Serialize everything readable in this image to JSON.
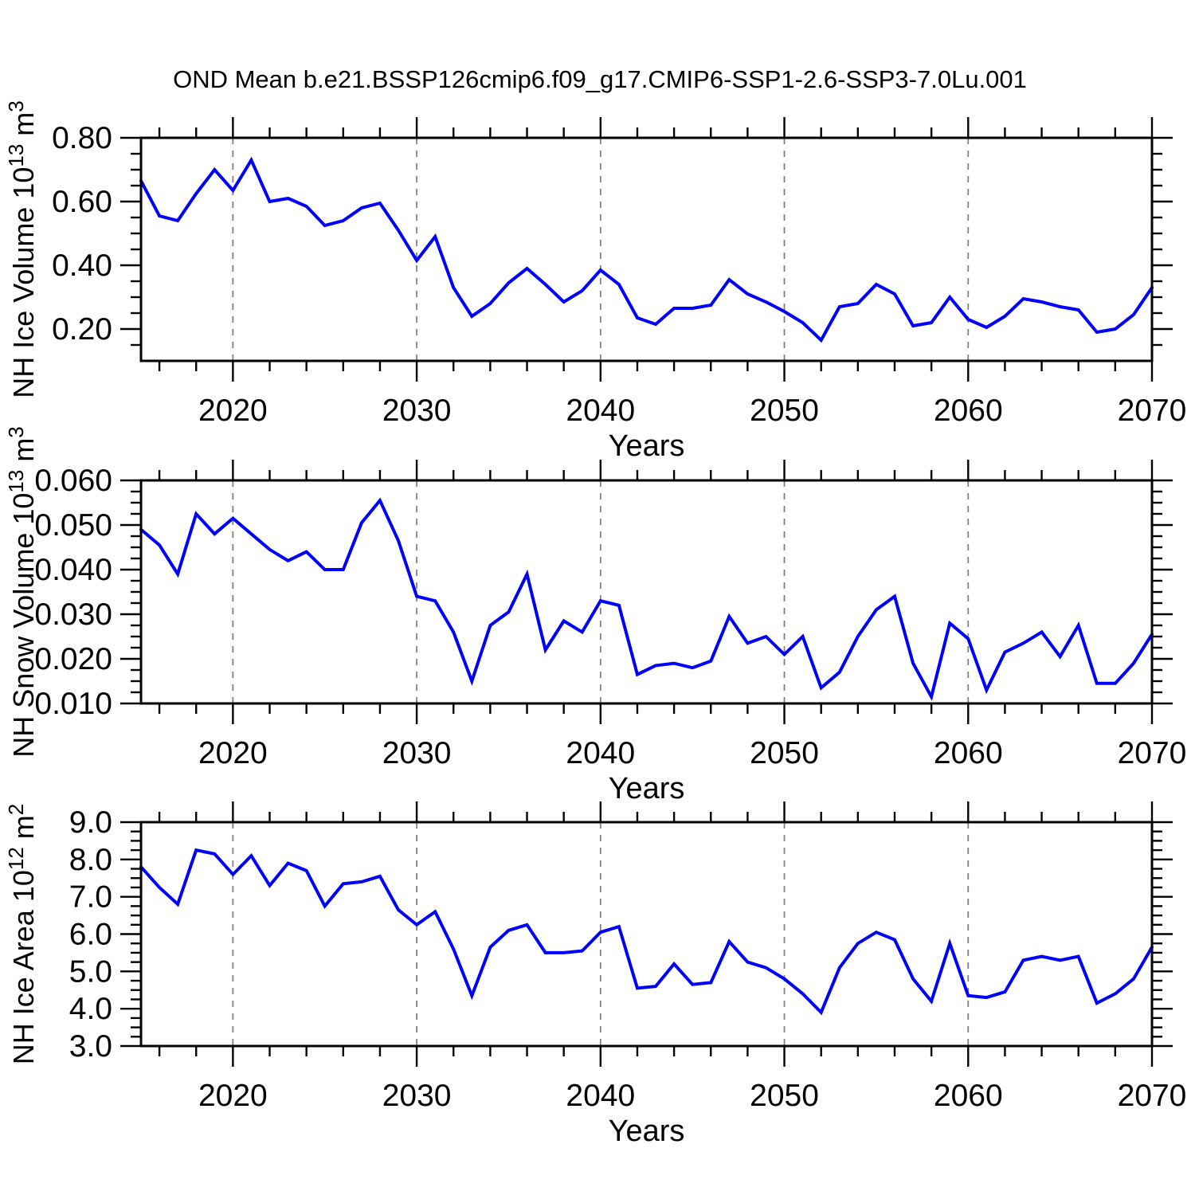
{
  "title": "OND Mean b.e21.BSSP126cmip6.f09_g17.CMIP6-SSP1-2.6-SSP3-7.0Lu.001",
  "colors": {
    "line": "#0000ff",
    "frame": "#000000",
    "gridline": "#828282",
    "text": "#000000",
    "background": "#ffffff"
  },
  "chart_data": [
    {
      "type": "line",
      "panel_id": "nh-ice-volume",
      "series_name": "NH Ice Volume",
      "xlabel": "Years",
      "ylabel_text": "NH Ice Volume 10^13 m^3",
      "ylabel_parts": [
        {
          "t": "NH Ice Volume 10",
          "sup": false
        },
        {
          "t": "13",
          "sup": true
        },
        {
          "t": " m",
          "sup": false
        },
        {
          "t": "3",
          "sup": true
        }
      ],
      "x_range": [
        2015,
        2070
      ],
      "y_range": [
        0.1,
        0.8
      ],
      "x_major_ticks": [
        2020,
        2030,
        2040,
        2050,
        2060,
        2070
      ],
      "x_major_labels": [
        "2020",
        "2030",
        "2040",
        "2050",
        "2060",
        "2070"
      ],
      "x_minor_step": 2,
      "grid_years": [
        2020,
        2030,
        2040,
        2050,
        2060
      ],
      "y_major_ticks": [
        0.2,
        0.4,
        0.6,
        0.8
      ],
      "y_major_labels": [
        "0.20",
        "0.40",
        "0.60",
        "0.80"
      ],
      "y_minor_step": 0.05,
      "grid": "vertical-dashed-only",
      "legend": "none",
      "x": [
        2015,
        2016,
        2017,
        2018,
        2019,
        2020,
        2021,
        2022,
        2023,
        2024,
        2025,
        2026,
        2027,
        2028,
        2029,
        2030,
        2031,
        2032,
        2033,
        2034,
        2035,
        2036,
        2037,
        2038,
        2039,
        2040,
        2041,
        2042,
        2043,
        2044,
        2045,
        2046,
        2047,
        2048,
        2049,
        2050,
        2051,
        2052,
        2053,
        2054,
        2055,
        2056,
        2057,
        2058,
        2059,
        2060,
        2061,
        2062,
        2063,
        2064,
        2065,
        2066,
        2067,
        2068,
        2069,
        2070
      ],
      "values": [
        0.665,
        0.555,
        0.54,
        0.625,
        0.7,
        0.635,
        0.73,
        0.6,
        0.61,
        0.585,
        0.525,
        0.54,
        0.58,
        0.595,
        0.51,
        0.415,
        0.49,
        0.33,
        0.24,
        0.28,
        0.345,
        0.39,
        0.34,
        0.285,
        0.32,
        0.385,
        0.34,
        0.235,
        0.215,
        0.265,
        0.265,
        0.275,
        0.355,
        0.31,
        0.285,
        0.255,
        0.22,
        0.165,
        0.27,
        0.28,
        0.34,
        0.31,
        0.21,
        0.22,
        0.3,
        0.23,
        0.205,
        0.24,
        0.295,
        0.285,
        0.27,
        0.26,
        0.19,
        0.2,
        0.245,
        0.33
      ]
    },
    {
      "type": "line",
      "panel_id": "nh-snow-volume",
      "series_name": "NH Snow Volume",
      "xlabel": "Years",
      "ylabel_text": "NH Snow Volume 10^13 m^3",
      "ylabel_parts": [
        {
          "t": "NH Snow Volume 10",
          "sup": false
        },
        {
          "t": "13",
          "sup": true
        },
        {
          "t": " m",
          "sup": false
        },
        {
          "t": "3",
          "sup": true
        }
      ],
      "x_range": [
        2015,
        2070
      ],
      "y_range": [
        0.01,
        0.06
      ],
      "x_major_ticks": [
        2020,
        2030,
        2040,
        2050,
        2060,
        2070
      ],
      "x_major_labels": [
        "2020",
        "2030",
        "2040",
        "2050",
        "2060",
        "2070"
      ],
      "x_minor_step": 2,
      "grid_years": [
        2020,
        2030,
        2040,
        2050,
        2060
      ],
      "y_major_ticks": [
        0.01,
        0.02,
        0.03,
        0.04,
        0.05,
        0.06
      ],
      "y_major_labels": [
        "0.010",
        "0.020",
        "0.030",
        "0.040",
        "0.050",
        "0.060"
      ],
      "y_minor_step": 0.0025,
      "grid": "vertical-dashed-only",
      "legend": "none",
      "x": [
        2015,
        2016,
        2017,
        2018,
        2019,
        2020,
        2021,
        2022,
        2023,
        2024,
        2025,
        2026,
        2027,
        2028,
        2029,
        2030,
        2031,
        2032,
        2033,
        2034,
        2035,
        2036,
        2037,
        2038,
        2039,
        2040,
        2041,
        2042,
        2043,
        2044,
        2045,
        2046,
        2047,
        2048,
        2049,
        2050,
        2051,
        2052,
        2053,
        2054,
        2055,
        2056,
        2057,
        2058,
        2059,
        2060,
        2061,
        2062,
        2063,
        2064,
        2065,
        2066,
        2067,
        2068,
        2069,
        2070
      ],
      "values": [
        0.049,
        0.0455,
        0.039,
        0.0525,
        0.048,
        0.0515,
        0.048,
        0.0445,
        0.042,
        0.044,
        0.04,
        0.04,
        0.0505,
        0.0555,
        0.0465,
        0.034,
        0.033,
        0.026,
        0.015,
        0.0275,
        0.0305,
        0.039,
        0.022,
        0.0285,
        0.026,
        0.033,
        0.032,
        0.0165,
        0.0185,
        0.019,
        0.018,
        0.0195,
        0.0295,
        0.0235,
        0.025,
        0.021,
        0.025,
        0.0135,
        0.017,
        0.025,
        0.031,
        0.034,
        0.019,
        0.0115,
        0.028,
        0.0245,
        0.013,
        0.0215,
        0.0235,
        0.026,
        0.0205,
        0.0275,
        0.0145,
        0.0145,
        0.019,
        0.0255
      ]
    },
    {
      "type": "line",
      "panel_id": "nh-ice-area",
      "series_name": "NH Ice Area",
      "xlabel": "Years",
      "ylabel_text": "NH Ice Area 10^12 m^2",
      "ylabel_parts": [
        {
          "t": "NH Ice Area 10",
          "sup": false
        },
        {
          "t": "12",
          "sup": true
        },
        {
          "t": " m",
          "sup": false
        },
        {
          "t": "2",
          "sup": true
        }
      ],
      "x_range": [
        2015,
        2070
      ],
      "y_range": [
        3.0,
        9.0
      ],
      "x_major_ticks": [
        2020,
        2030,
        2040,
        2050,
        2060,
        2070
      ],
      "x_major_labels": [
        "2020",
        "2030",
        "2040",
        "2050",
        "2060",
        "2070"
      ],
      "x_minor_step": 2,
      "grid_years": [
        2020,
        2030,
        2040,
        2050,
        2060
      ],
      "y_major_ticks": [
        3.0,
        4.0,
        5.0,
        6.0,
        7.0,
        8.0,
        9.0
      ],
      "y_major_labels": [
        "3.0",
        "4.0",
        "5.0",
        "6.0",
        "7.0",
        "8.0",
        "9.0"
      ],
      "y_minor_step": 0.25,
      "grid": "vertical-dashed-only",
      "legend": "none",
      "x": [
        2015,
        2016,
        2017,
        2018,
        2019,
        2020,
        2021,
        2022,
        2023,
        2024,
        2025,
        2026,
        2027,
        2028,
        2029,
        2030,
        2031,
        2032,
        2033,
        2034,
        2035,
        2036,
        2037,
        2038,
        2039,
        2040,
        2041,
        2042,
        2043,
        2044,
        2045,
        2046,
        2047,
        2048,
        2049,
        2050,
        2051,
        2052,
        2053,
        2054,
        2055,
        2056,
        2057,
        2058,
        2059,
        2060,
        2061,
        2062,
        2063,
        2064,
        2065,
        2066,
        2067,
        2068,
        2069,
        2070
      ],
      "values": [
        7.8,
        7.25,
        6.8,
        8.25,
        8.15,
        7.6,
        8.1,
        7.3,
        7.9,
        7.7,
        6.75,
        7.35,
        7.4,
        7.55,
        6.65,
        6.25,
        6.6,
        5.6,
        4.35,
        5.65,
        6.1,
        6.25,
        5.5,
        5.5,
        5.55,
        6.05,
        6.2,
        4.55,
        4.6,
        5.2,
        4.65,
        4.7,
        5.8,
        5.25,
        5.1,
        4.8,
        4.4,
        3.9,
        5.1,
        5.75,
        6.05,
        5.85,
        4.8,
        4.2,
        5.75,
        4.35,
        4.3,
        4.45,
        5.3,
        5.4,
        5.3,
        5.4,
        4.15,
        4.4,
        4.8,
        5.65
      ]
    }
  ]
}
